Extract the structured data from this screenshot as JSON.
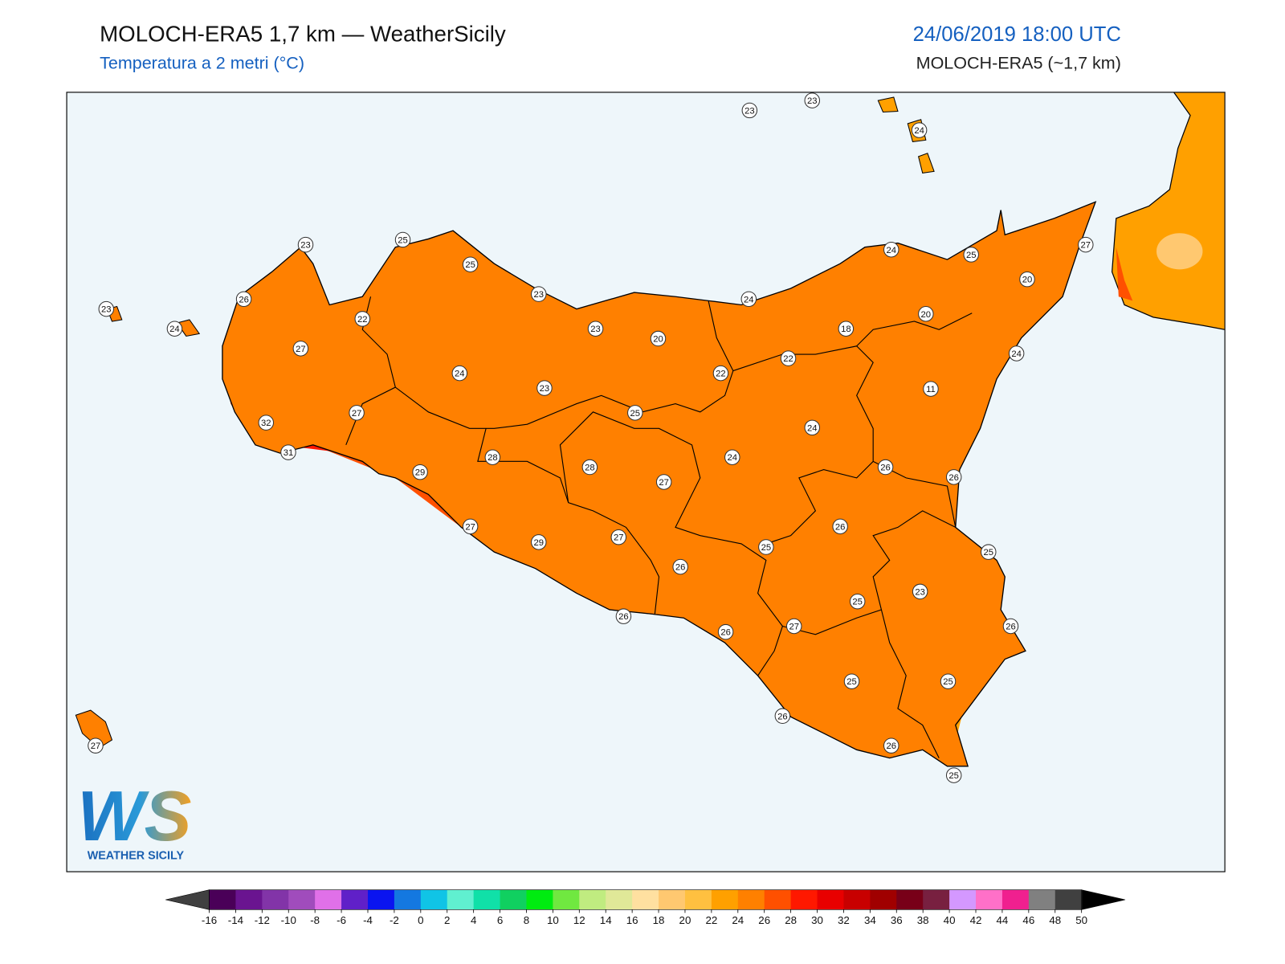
{
  "header": {
    "title": "MOLOCH-ERA5 1,7 km — WeatherSicily",
    "subtitle": "Temperatura a 2 metri (°C)",
    "date": "24/06/2019 18:00 UTC",
    "model": "MOLOCH-ERA5 (~1,7 km)"
  },
  "stations": [
    23,
    23,
    24,
    23,
    25,
    25,
    26,
    23,
    24,
    22,
    23,
    24,
    24,
    25,
    27,
    20,
    20,
    18,
    23,
    20,
    27,
    22,
    22,
    24,
    24,
    23,
    11,
    27,
    25,
    24,
    32,
    31,
    28,
    24,
    28,
    29,
    27,
    26,
    26,
    26,
    27,
    29,
    27,
    25,
    25,
    26,
    23,
    25,
    26,
    27,
    26,
    26,
    25,
    25,
    26,
    27,
    26,
    25
  ],
  "logo": {
    "text": "WS",
    "caption": "WEATHER SICILY"
  },
  "colorbar": {
    "ticks": [
      -16,
      -14,
      -12,
      -10,
      -8,
      -6,
      -4,
      -2,
      0,
      2,
      4,
      6,
      8,
      10,
      12,
      14,
      16,
      18,
      20,
      22,
      24,
      26,
      28,
      30,
      32,
      34,
      36,
      38,
      40,
      42,
      44,
      46,
      48,
      50
    ],
    "colors": [
      "#4a0058",
      "#6a1490",
      "#8234a8",
      "#a04cbc",
      "#e070e8",
      "#6020c8",
      "#0a14f0",
      "#1478e0",
      "#10c4e6",
      "#60f0d0",
      "#10e0a8",
      "#10d060",
      "#00ec10",
      "#70e840",
      "#c0ec80",
      "#e0e898",
      "#ffe0a0",
      "#ffc870",
      "#ffc040",
      "#ffa000",
      "#ff8000",
      "#ff5000",
      "#ff1800",
      "#e80000",
      "#c80000",
      "#a00000",
      "#780018",
      "#782040",
      "#d498ff",
      "#ff70c8",
      "#f0208f",
      "#808080",
      "#404040"
    ],
    "under_color": "#404040",
    "over_color": "#000000"
  }
}
